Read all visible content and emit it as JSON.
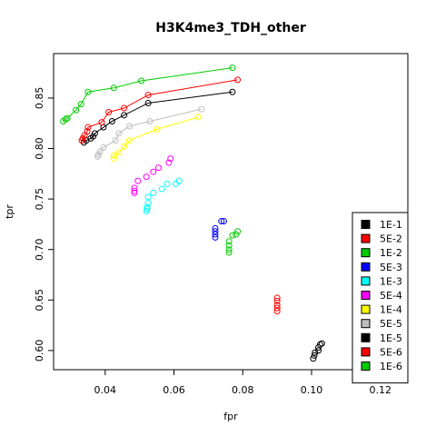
{
  "chart_data": {
    "type": "scatter",
    "title": "H3K4me3_TDH_other",
    "xlabel": "fpr",
    "ylabel": "tpr",
    "xlim": [
      0.025,
      0.128
    ],
    "ylim": [
      0.581,
      0.894
    ],
    "xticks": [
      0.04,
      0.06,
      0.08,
      0.1,
      0.12
    ],
    "xtick_labels": [
      "0.04",
      "0.06",
      "0.08",
      "0.10",
      "0.12"
    ],
    "yticks": [
      0.6,
      0.65,
      0.7,
      0.75,
      0.8,
      0.85
    ],
    "ytick_labels": [
      "0.60",
      "0.65",
      "0.70",
      "0.75",
      "0.80",
      "0.85"
    ],
    "grid": false,
    "legend_position": "bottom-right",
    "series": [
      {
        "name": "1E-1",
        "color": "#000000",
        "connected": true,
        "points": [
          [
            0.077,
            0.856
          ],
          [
            0.0525,
            0.845
          ],
          [
            0.0455,
            0.833
          ],
          [
            0.042,
            0.827
          ],
          [
            0.0395,
            0.821
          ],
          [
            0.037,
            0.815
          ],
          [
            0.0365,
            0.812
          ],
          [
            0.0358,
            0.81
          ],
          [
            0.0345,
            0.808
          ],
          [
            0.0338,
            0.806
          ]
        ]
      },
      {
        "name": "5E-2",
        "color": "#ff0000",
        "connected": true,
        "points": [
          [
            0.0785,
            0.868
          ],
          [
            0.0525,
            0.853
          ],
          [
            0.0455,
            0.84
          ],
          [
            0.041,
            0.836
          ],
          [
            0.039,
            0.826
          ],
          [
            0.035,
            0.821
          ],
          [
            0.0348,
            0.817
          ],
          [
            0.034,
            0.813
          ],
          [
            0.0335,
            0.81
          ],
          [
            0.0332,
            0.808
          ]
        ]
      },
      {
        "name": "1E-2",
        "color": "#00cc00",
        "connected": true,
        "points": [
          [
            0.077,
            0.88
          ],
          [
            0.0505,
            0.867
          ],
          [
            0.0425,
            0.86
          ],
          [
            0.035,
            0.856
          ],
          [
            0.033,
            0.844
          ],
          [
            0.0315,
            0.838
          ],
          [
            0.029,
            0.83
          ],
          [
            0.0285,
            0.829
          ],
          [
            0.0278,
            0.827
          ]
        ]
      },
      {
        "name": "5E-3",
        "color": "#0000ff",
        "connected": false,
        "points": [
          [
            0.0745,
            0.728
          ],
          [
            0.0738,
            0.728
          ],
          [
            0.072,
            0.721
          ],
          [
            0.072,
            0.718
          ],
          [
            0.072,
            0.715
          ],
          [
            0.072,
            0.712
          ]
        ]
      },
      {
        "name": "1E-3",
        "color": "#00ffff",
        "connected": false,
        "points": [
          [
            0.0615,
            0.768
          ],
          [
            0.0605,
            0.765
          ],
          [
            0.058,
            0.765
          ],
          [
            0.0565,
            0.76
          ],
          [
            0.054,
            0.756
          ],
          [
            0.0525,
            0.752
          ],
          [
            0.0525,
            0.746
          ],
          [
            0.0522,
            0.742
          ],
          [
            0.0522,
            0.74
          ],
          [
            0.052,
            0.738
          ]
        ]
      },
      {
        "name": "5E-4",
        "color": "#ff00ff",
        "connected": false,
        "points": [
          [
            0.059,
            0.79
          ],
          [
            0.0585,
            0.786
          ],
          [
            0.0555,
            0.781
          ],
          [
            0.054,
            0.777
          ],
          [
            0.052,
            0.772
          ],
          [
            0.0495,
            0.768
          ],
          [
            0.0485,
            0.761
          ],
          [
            0.0485,
            0.758
          ],
          [
            0.0485,
            0.756
          ]
        ]
      },
      {
        "name": "1E-4",
        "color": "#ffff00",
        "connected": true,
        "points": [
          [
            0.067,
            0.831
          ],
          [
            0.055,
            0.819
          ],
          [
            0.047,
            0.808
          ],
          [
            0.0455,
            0.802
          ],
          [
            0.044,
            0.796
          ],
          [
            0.0425,
            0.793
          ],
          [
            0.0425,
            0.79
          ]
        ]
      },
      {
        "name": "5E-5",
        "color": "#bebebe",
        "connected": true,
        "points": [
          [
            0.068,
            0.839
          ],
          [
            0.053,
            0.827
          ],
          [
            0.047,
            0.822
          ],
          [
            0.044,
            0.815
          ],
          [
            0.043,
            0.808
          ],
          [
            0.0395,
            0.801
          ],
          [
            0.0385,
            0.797
          ],
          [
            0.038,
            0.794
          ],
          [
            0.0378,
            0.792
          ]
        ]
      },
      {
        "name": "1E-5",
        "color": "#000000",
        "connected": false,
        "points": [
          [
            0.103,
            0.607
          ],
          [
            0.1025,
            0.606
          ],
          [
            0.102,
            0.603
          ],
          [
            0.102,
            0.6
          ],
          [
            0.101,
            0.598
          ],
          [
            0.1008,
            0.595
          ],
          [
            0.1005,
            0.592
          ]
        ]
      },
      {
        "name": "5E-6",
        "color": "#ff0000",
        "connected": false,
        "points": [
          [
            0.09,
            0.652
          ],
          [
            0.09,
            0.649
          ],
          [
            0.09,
            0.645
          ],
          [
            0.09,
            0.642
          ],
          [
            0.09,
            0.639
          ]
        ]
      },
      {
        "name": "1E-6",
        "color": "#00cc00",
        "connected": false,
        "points": [
          [
            0.0785,
            0.718
          ],
          [
            0.078,
            0.715
          ],
          [
            0.077,
            0.714
          ],
          [
            0.076,
            0.708
          ],
          [
            0.076,
            0.704
          ],
          [
            0.076,
            0.7
          ],
          [
            0.076,
            0.697
          ]
        ]
      }
    ]
  }
}
